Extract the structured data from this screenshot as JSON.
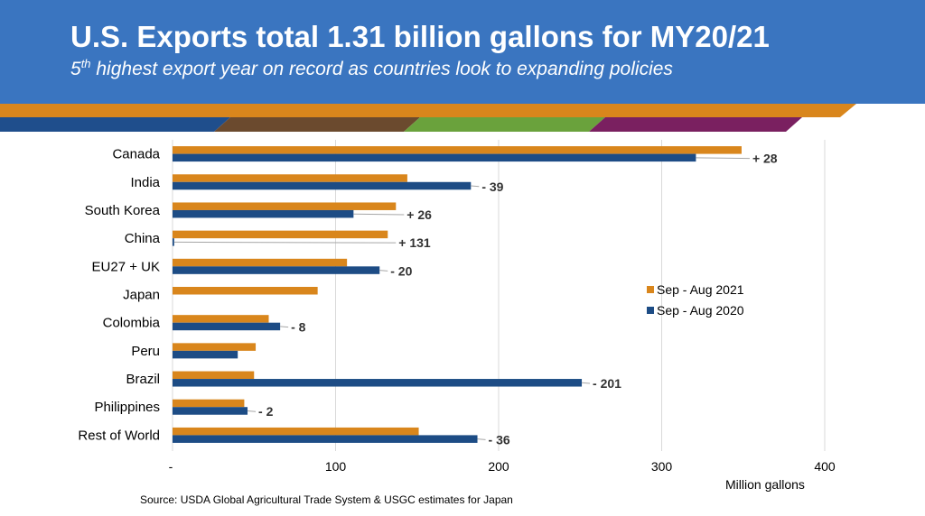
{
  "header": {
    "title": "U.S. Exports total 1.31 billion gallons for MY20/21",
    "subtitle_sup": "th",
    "subtitle_num": "5",
    "subtitle_rest": " highest export year on record as countries look to expanding policies"
  },
  "colors": {
    "header_bg": "#3a75c0",
    "stripe_orange": "#d9861c",
    "band_blue": "#1f4e8c",
    "band_brown": "#6b4a2e",
    "band_green": "#6aa23c",
    "band_purple": "#7a2060",
    "series_2021": "#d9861c",
    "series_2020": "#1d4c85"
  },
  "chart_data": {
    "type": "bar",
    "orientation": "horizontal",
    "categories": [
      "Canada",
      "India",
      "South Korea",
      "China",
      "EU27 + UK",
      "Japan",
      "Colombia",
      "Peru",
      "Brazil",
      "Philippines",
      "Rest of World"
    ],
    "series": [
      {
        "name": "Sep - Aug 2021",
        "values": [
          349,
          144,
          137,
          132,
          107,
          89,
          59,
          51,
          50,
          44,
          151
        ]
      },
      {
        "name": "Sep - Aug 2020",
        "values": [
          321,
          183,
          111,
          1,
          127,
          null,
          66,
          40,
          251,
          46,
          187
        ]
      }
    ],
    "annotations": [
      "+ 28",
      "- 39",
      "+ 26",
      "+ 131",
      "- 20",
      "",
      "- 8",
      "",
      "- 201",
      "- 2",
      "- 36"
    ],
    "xlim": [
      0,
      400
    ],
    "xticks": [
      "-",
      "100",
      "200",
      "300",
      "400"
    ],
    "xlabel": "Million gallons",
    "grid": "vertical",
    "legend_position": "right"
  },
  "source": "Source: USDA Global Agricultural Trade System & USGC estimates for Japan"
}
